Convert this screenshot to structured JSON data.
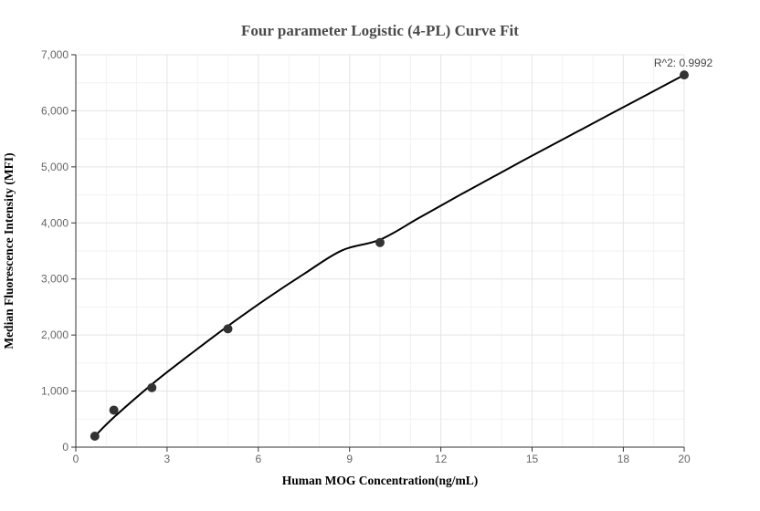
{
  "chart_data": {
    "type": "scatter",
    "title": "Four parameter Logistic (4-PL) Curve Fit",
    "xlabel": "Human MOG Concentration(ng/mL)",
    "ylabel": "Median Fluorescence Intensity (MFI)",
    "xlim": [
      0,
      20
    ],
    "ylim": [
      0,
      7000
    ],
    "x_ticks": [
      0,
      3,
      6,
      9,
      12,
      15,
      18,
      20
    ],
    "y_ticks": [
      0,
      1000,
      2000,
      3000,
      4000,
      5000,
      6000,
      7000
    ],
    "x_tick_labels": [
      "0",
      "3",
      "6",
      "9",
      "12",
      "15",
      "18",
      "20"
    ],
    "y_tick_labels": [
      "0",
      "1,000",
      "2,000",
      "3,000",
      "4,000",
      "5,000",
      "6,000",
      "7,000"
    ],
    "grid": true,
    "points": [
      {
        "x": 0.625,
        "y": 195
      },
      {
        "x": 1.25,
        "y": 660
      },
      {
        "x": 2.5,
        "y": 1060
      },
      {
        "x": 5,
        "y": 2110
      },
      {
        "x": 10,
        "y": 3650
      },
      {
        "x": 20,
        "y": 6640
      }
    ],
    "fit_curve": {
      "model": "4PL",
      "points": [
        [
          0.625,
          195
        ],
        [
          1.25,
          530
        ],
        [
          2.5,
          1120
        ],
        [
          3.75,
          1650
        ],
        [
          5,
          2160
        ],
        [
          6.25,
          2640
        ],
        [
          7.5,
          3090
        ],
        [
          8.75,
          3510
        ],
        [
          10,
          3700
        ],
        [
          11.25,
          4080
        ],
        [
          12.5,
          4460
        ],
        [
          13.75,
          4830
        ],
        [
          15,
          5200
        ],
        [
          16.25,
          5560
        ],
        [
          17.5,
          5920
        ],
        [
          18.75,
          6280
        ],
        [
          20,
          6640
        ]
      ]
    },
    "annotation": "R^2: 0.9992",
    "colors": {
      "marker": "#333333",
      "curve": "#000000",
      "grid": "#e6e6e6",
      "axis": "#333333"
    }
  }
}
